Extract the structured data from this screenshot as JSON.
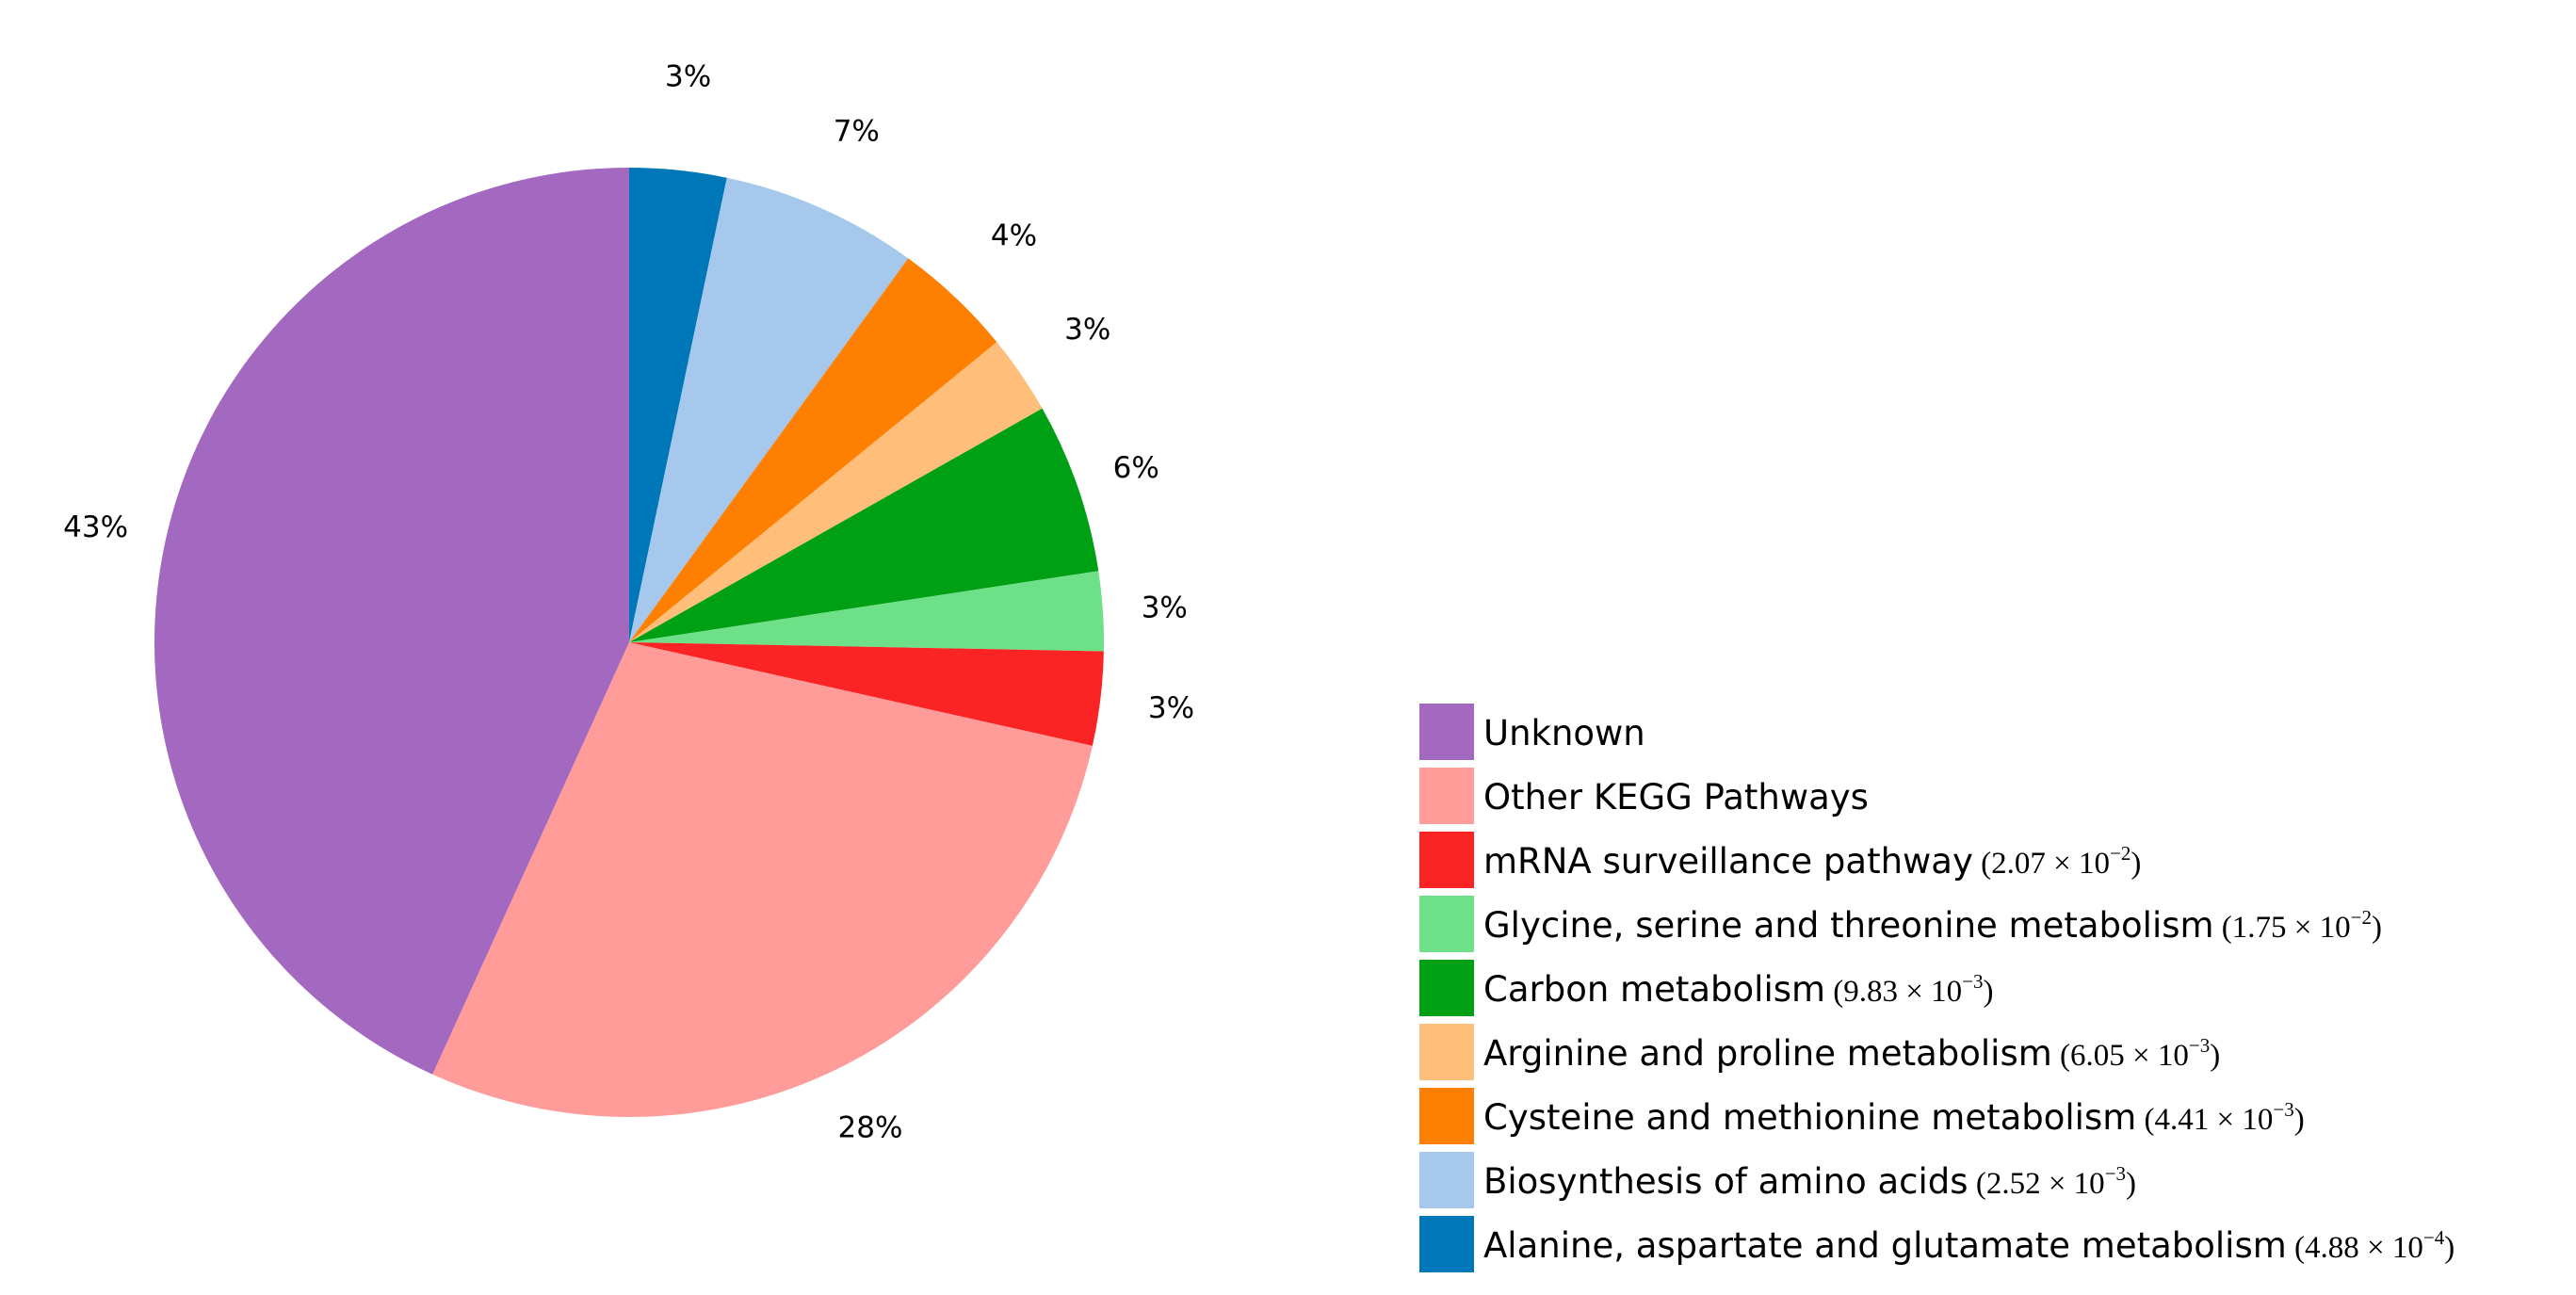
{
  "chart_data": {
    "type": "pie",
    "start": "12 o'clock",
    "direction": "clockwise",
    "legend_position": "bottom-right",
    "slices": [
      {
        "label": "Alanine, aspartate and glutamate metabolism",
        "p_mantissa": "4.88",
        "p_exponent": "−4",
        "value": 3.3,
        "value_label": "3%",
        "color": "#0077b8"
      },
      {
        "label": "Biosynthesis of amino acids",
        "p_mantissa": "2.52",
        "p_exponent": "−3",
        "value": 6.7,
        "value_label": "7%",
        "color": "#a6c8ec"
      },
      {
        "label": "Cysteine and methionine metabolism",
        "p_mantissa": "4.41",
        "p_exponent": "−3",
        "value": 4.1,
        "value_label": "4%",
        "color": "#ff8000"
      },
      {
        "label": "Arginine and proline metabolism",
        "p_mantissa": "6.05",
        "p_exponent": "−3",
        "value": 2.7,
        "value_label": "3%",
        "color": "#ffbe7a"
      },
      {
        "label": "Carbon metabolism",
        "p_mantissa": "9.83",
        "p_exponent": "−3",
        "value": 5.8,
        "value_label": "6%",
        "color": "#00a014"
      },
      {
        "label": "Glycine, serine and threonine metabolism",
        "p_mantissa": "1.75",
        "p_exponent": "−2",
        "value": 2.7,
        "value_label": "3%",
        "color": "#6ee087"
      },
      {
        "label": "mRNA surveillance pathway",
        "p_mantissa": "2.07",
        "p_exponent": "−2",
        "value": 3.2,
        "value_label": "3%",
        "color": "#fb2424"
      },
      {
        "label": "Other KEGG Pathways",
        "value": 28.3,
        "value_label": "28%",
        "color": "#ff9b99"
      },
      {
        "label": "Unknown",
        "value": 43.2,
        "value_label": "43%",
        "color": "#a368c0"
      }
    ],
    "legend_order": [
      "Unknown",
      "Other KEGG Pathways",
      "mRNA surveillance pathway",
      "Glycine, serine and threonine metabolism",
      "Carbon metabolism",
      "Arginine and proline metabolism",
      "Cysteine and methionine metabolism",
      "Biosynthesis of amino acids",
      "Alanine, aspartate and glutamate metabolism"
    ]
  }
}
